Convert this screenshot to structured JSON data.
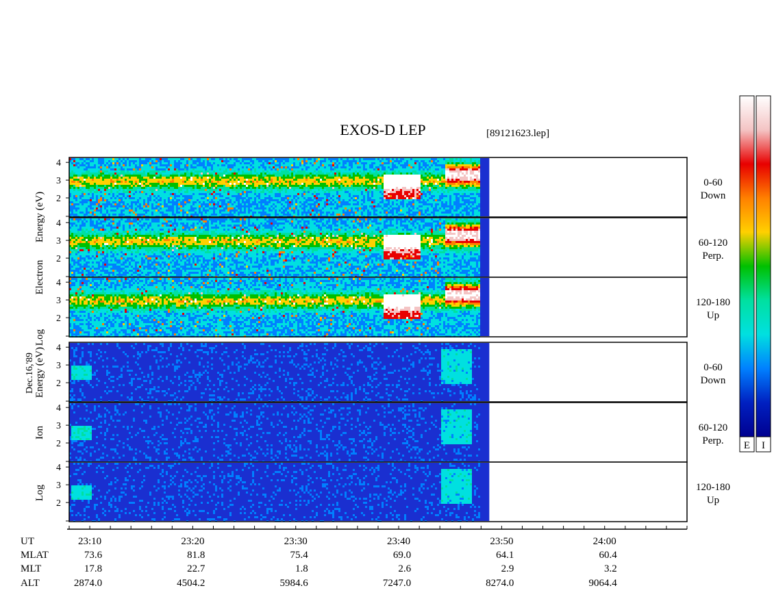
{
  "title": "EXOS-D LEP",
  "file_label": "[89121623.lep]",
  "date_label": "Dec.16,'89",
  "colors": {
    "background": "#ffffff",
    "spectrogram_base": "#1a2fd0",
    "frame": "#000000"
  },
  "chart_data": {
    "type": "heatmap",
    "species": [
      {
        "name": "Electron",
        "ylabel": "Log Electron Energy (eV)",
        "panels": [
          {
            "angle": "0-60",
            "dir": "Down"
          },
          {
            "angle": "60-120",
            "dir": "Perp."
          },
          {
            "angle": "120-180",
            "dir": "Up"
          }
        ]
      },
      {
        "name": "Ion",
        "ylabel": "Log Ion Energy (eV)",
        "panels": [
          {
            "angle": "0-60",
            "dir": "Down"
          },
          {
            "angle": "60-120",
            "dir": "Perp."
          },
          {
            "angle": "120-180",
            "dir": "Up"
          }
        ]
      }
    ],
    "y_ticks": [
      "4",
      "3",
      "2"
    ],
    "ylim": [
      1,
      4.2
    ],
    "time_axis": {
      "start_min": 1388,
      "end_min": 1448,
      "data_end_min": 1428.8,
      "labels": [
        {
          "min": 1390,
          "text": "23:10"
        },
        {
          "min": 1400,
          "text": "23:20"
        },
        {
          "min": 1410,
          "text": "23:30"
        },
        {
          "min": 1420,
          "text": "23:40"
        },
        {
          "min": 1430,
          "text": "23:50"
        },
        {
          "min": 1440,
          "text": "24:00"
        }
      ]
    },
    "ephemeris": {
      "rows": [
        "UT",
        "MLAT",
        "MLT",
        "ALT"
      ],
      "columns": [
        {
          "MLAT": "73.6",
          "MLT": "17.8",
          "ALT": "2874.0"
        },
        {
          "MLAT": "81.8",
          "MLT": "22.7",
          "ALT": "4504.2"
        },
        {
          "MLAT": "75.4",
          "MLT": "1.8",
          "ALT": "5984.6"
        },
        {
          "MLAT": "69.0",
          "MLT": "2.6",
          "ALT": "7247.0"
        },
        {
          "MLAT": "64.1",
          "MLT": "2.9",
          "ALT": "8274.0"
        },
        {
          "MLAT": "60.4",
          "MLT": "3.2",
          "ALT": "9064.4"
        }
      ]
    },
    "colorbars": [
      {
        "label": "E"
      },
      {
        "label": "I"
      }
    ],
    "colormap": [
      "#ffffff",
      "#f4c4c4",
      "#e80000",
      "#ff8000",
      "#ffd000",
      "#00c000",
      "#00e0a0",
      "#00e0e0",
      "#0080ff",
      "#0020c0",
      "#000090"
    ]
  }
}
